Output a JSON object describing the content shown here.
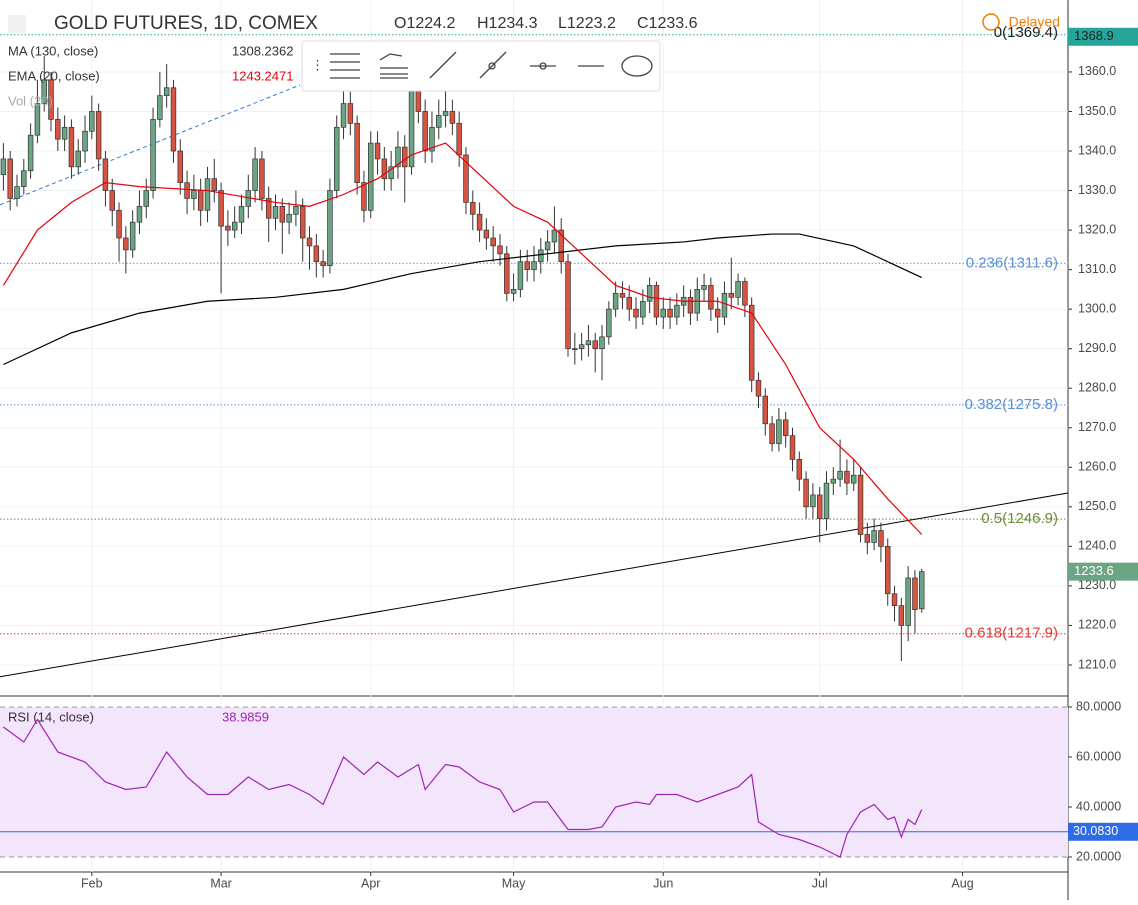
{
  "header": {
    "title": "GOLD FUTURES, 1D, COMEX",
    "ohlc": [
      {
        "label": "O1224.2",
        "value": 1224.2
      },
      {
        "label": "H1234.3",
        "value": 1234.3
      },
      {
        "label": "L1223.2",
        "value": 1223.2
      },
      {
        "label": "C1233.6",
        "value": 1233.6
      }
    ],
    "status": "Delayed"
  },
  "legend": [
    {
      "name": "MA (130, close)",
      "value": 1308.2362,
      "color": "#000000"
    },
    {
      "name": "EMA (20, close)",
      "value": 1243.2471,
      "color": "#e8000b"
    },
    {
      "name": "Vol (20)"
    }
  ],
  "chart_data": {
    "type": "candlestick",
    "xlim": [
      -0.5,
      156.5
    ],
    "xticks": [
      {
        "value": 13,
        "label": "Feb"
      },
      {
        "value": 32,
        "label": "Mar"
      },
      {
        "value": 54,
        "label": "Apr"
      },
      {
        "value": 75,
        "label": "May"
      },
      {
        "value": 97,
        "label": "Jun"
      },
      {
        "value": 120,
        "label": "Jul"
      },
      {
        "value": 141,
        "label": "Aug"
      }
    ],
    "ylim": [
      1202.4,
      1378.2
    ],
    "yticks": [
      {
        "value": 1210,
        "label": "1210.0"
      },
      {
        "value": 1220,
        "label": "1220.0"
      },
      {
        "value": 1230,
        "label": "1230.0"
      },
      {
        "value": 1240,
        "label": "1240.0"
      },
      {
        "value": 1250,
        "label": "1250.0"
      },
      {
        "value": 1260,
        "label": "1260.0"
      },
      {
        "value": 1270,
        "label": "1270.0"
      },
      {
        "value": 1280,
        "label": "1280.0"
      },
      {
        "value": 1290,
        "label": "1290.0"
      },
      {
        "value": 1300,
        "label": "1300.0"
      },
      {
        "value": 1310,
        "label": "1310.0"
      },
      {
        "value": 1320,
        "label": "1320.0"
      },
      {
        "value": 1330,
        "label": "1330.0"
      },
      {
        "value": 1340,
        "label": "1340.0"
      },
      {
        "value": 1350,
        "label": "1350.0"
      },
      {
        "value": 1360,
        "label": "1360.0"
      }
    ],
    "up_color": "#6ba583",
    "down_color": "#d75442",
    "open": [
      1334,
      1338,
      1328,
      1331,
      1335,
      1344,
      1352,
      1358,
      1348,
      1343,
      1346,
      1336,
      1340,
      1345,
      1350,
      1338,
      1330,
      1325,
      1318,
      1315,
      1322,
      1326,
      1330,
      1348,
      1354,
      1356,
      1340,
      1332,
      1328,
      1330,
      1325,
      1333,
      1330,
      1321,
      1320,
      1322,
      1326,
      1330,
      1338,
      1328,
      1323,
      1326,
      1322,
      1324,
      1326,
      1318,
      1316,
      1312,
      1311,
      1330,
      1346,
      1352,
      1347,
      1332,
      1325,
      1342,
      1338,
      1333,
      1336,
      1341,
      1336,
      1357,
      1350,
      1340,
      1346,
      1349,
      1350,
      1347,
      1339,
      1327,
      1324,
      1320,
      1318,
      1316,
      1314,
      1304,
      1305,
      1312,
      1310,
      1312,
      1315,
      1317,
      1320,
      1312,
      1290,
      1290,
      1291,
      1292,
      1290,
      1293,
      1300,
      1304,
      1303,
      1300,
      1298,
      1302,
      1306,
      1298,
      1300,
      1298,
      1301,
      1303,
      1299,
      1305,
      1306,
      1300,
      1298,
      1304,
      1303,
      1307,
      1301,
      1282,
      1278,
      1271,
      1266,
      1272,
      1268,
      1262,
      1257,
      1250,
      1253,
      1247,
      1256,
      1257,
      1259,
      1256,
      1258,
      1243,
      1241,
      1244,
      1240,
      1228,
      1225,
      1220,
      1232,
      1224.2
    ],
    "high": [
      1342,
      1340,
      1334,
      1338,
      1347,
      1358,
      1364,
      1360,
      1351,
      1349,
      1348,
      1343,
      1349,
      1354,
      1352,
      1340,
      1333,
      1327,
      1321,
      1325,
      1330,
      1333,
      1351,
      1360,
      1362,
      1358,
      1343,
      1335,
      1334,
      1333,
      1336,
      1338,
      1332,
      1325,
      1326,
      1329,
      1334,
      1341,
      1340,
      1331,
      1329,
      1328,
      1327,
      1330,
      1328,
      1321,
      1319,
      1315,
      1333,
      1349,
      1356,
      1355,
      1349,
      1335,
      1345,
      1345,
      1341,
      1340,
      1345,
      1344,
      1362,
      1360,
      1353,
      1350,
      1353,
      1358,
      1353,
      1350,
      1341,
      1330,
      1327,
      1323,
      1321,
      1319,
      1316,
      1309,
      1315,
      1315,
      1316,
      1318,
      1320,
      1326,
      1323,
      1314,
      1294,
      1294,
      1296,
      1294,
      1296,
      1302,
      1307,
      1307,
      1306,
      1303,
      1305,
      1308,
      1307,
      1303,
      1303,
      1304,
      1306,
      1305,
      1308,
      1309,
      1308,
      1303,
      1307,
      1313,
      1309,
      1308,
      1303,
      1284,
      1280,
      1273,
      1275,
      1274,
      1270,
      1264,
      1259,
      1256,
      1255,
      1259,
      1260,
      1267,
      1262,
      1262,
      1260,
      1246,
      1247,
      1246,
      1242,
      1230,
      1227,
      1235,
      1234,
      1234.3
    ],
    "low": [
      1330,
      1325,
      1326,
      1329,
      1333,
      1342,
      1350,
      1345,
      1340,
      1340,
      1333,
      1334,
      1337,
      1343,
      1335,
      1326,
      1321,
      1312,
      1309,
      1313,
      1319,
      1323,
      1328,
      1346,
      1351,
      1337,
      1329,
      1324,
      1325,
      1321,
      1322,
      1327,
      1304,
      1316,
      1318,
      1319,
      1323,
      1327,
      1325,
      1317,
      1320,
      1314,
      1319,
      1321,
      1312,
      1310,
      1308,
      1308,
      1309,
      1328,
      1343,
      1344,
      1329,
      1322,
      1323,
      1334,
      1330,
      1330,
      1333,
      1327,
      1334,
      1347,
      1337,
      1337,
      1343,
      1346,
      1344,
      1336,
      1324,
      1320,
      1317,
      1315,
      1312,
      1311,
      1302,
      1302,
      1303,
      1307,
      1307,
      1309,
      1312,
      1314,
      1309,
      1288,
      1286,
      1287,
      1288,
      1284,
      1282,
      1291,
      1298,
      1300,
      1297,
      1295,
      1296,
      1299,
      1296,
      1295,
      1295,
      1296,
      1298,
      1296,
      1297,
      1302,
      1297,
      1294,
      1296,
      1300,
      1301,
      1298,
      1279,
      1275,
      1268,
      1264,
      1264,
      1265,
      1259,
      1254,
      1247,
      1247,
      1241,
      1244,
      1253,
      1255,
      1253,
      1254,
      1241,
      1238,
      1239,
      1236,
      1225,
      1221,
      1211,
      1216,
      1218,
      1223.2
    ],
    "close": [
      1338,
      1328,
      1331,
      1335,
      1344,
      1352,
      1358,
      1348,
      1343,
      1346,
      1336,
      1340,
      1345,
      1350,
      1338,
      1330,
      1325,
      1318,
      1315,
      1322,
      1326,
      1330,
      1348,
      1354,
      1356,
      1340,
      1332,
      1328,
      1330,
      1325,
      1333,
      1330,
      1321,
      1320,
      1322,
      1326,
      1330,
      1338,
      1328,
      1323,
      1326,
      1322,
      1324,
      1326,
      1318,
      1316,
      1312,
      1311,
      1330,
      1346,
      1352,
      1347,
      1332,
      1325,
      1342,
      1338,
      1333,
      1336,
      1341,
      1336,
      1357,
      1350,
      1340,
      1346,
      1349,
      1350,
      1347,
      1339,
      1327,
      1324,
      1320,
      1318,
      1316,
      1314,
      1304,
      1305,
      1312,
      1310,
      1312,
      1315,
      1317,
      1320,
      1312,
      1290,
      1290,
      1291,
      1292,
      1290,
      1293,
      1300,
      1304,
      1303,
      1300,
      1298,
      1302,
      1306,
      1298,
      1300,
      1298,
      1301,
      1303,
      1299,
      1305,
      1306,
      1300,
      1298,
      1304,
      1303,
      1307,
      1301,
      1282,
      1278,
      1271,
      1266,
      1272,
      1268,
      1262,
      1257,
      1250,
      1253,
      1247,
      1256,
      1257,
      1259,
      1256,
      1258,
      1243,
      1241,
      1244,
      1240,
      1228,
      1225,
      1220,
      1232,
      1224,
      1233.6
    ],
    "series": [
      {
        "name": "MA (130, close)",
        "color": "#000000",
        "x": [
          0,
          10,
          20,
          30,
          40,
          50,
          60,
          70,
          80,
          90,
          100,
          105,
          113,
          117,
          125,
          135
        ],
        "values": [
          1286,
          1294,
          1299,
          1302,
          1303,
          1305,
          1309,
          1312,
          1314,
          1316,
          1317,
          1318,
          1319,
          1319,
          1316,
          1308
        ]
      },
      {
        "name": "EMA (20, close)",
        "color": "#e8000b",
        "x": [
          0,
          5,
          10,
          15,
          20,
          30,
          40,
          45,
          50,
          55,
          60,
          65,
          70,
          75,
          80,
          85,
          90,
          95,
          100,
          105,
          110,
          115,
          120,
          125,
          130,
          135
        ],
        "values": [
          1306,
          1320,
          1327,
          1332,
          1331,
          1330,
          1327,
          1326,
          1329,
          1333,
          1339,
          1342,
          1334,
          1326,
          1322,
          1314,
          1306,
          1303,
          1302,
          1302,
          1299,
          1286,
          1270,
          1262,
          1252,
          1243
        ]
      }
    ],
    "trendlines": [
      {
        "color": "#000000",
        "x": [
          -0.5,
          156.5
        ],
        "values": [
          1207,
          1253.5
        ]
      },
      {
        "color": "#2e7bd6",
        "x": [
          -0.5,
          43.6
        ],
        "values": [
          1326.4,
          1356.7
        ]
      }
    ],
    "fib_levels": [
      {
        "label": "0(1369.4)",
        "value": 1369.4,
        "color": "#26a69a"
      },
      {
        "label": "0.236(1311.6)",
        "value": 1311.6,
        "color": "#5b8fd9"
      },
      {
        "label": "0.382(1275.8)",
        "value": 1275.8,
        "color": "#5b8fd9"
      },
      {
        "label": "0.5(1246.9)",
        "value": 1246.9,
        "color": "#6b8e3a"
      },
      {
        "label": "0.618(1217.9)",
        "value": 1217.9,
        "color": "#e53935"
      }
    ],
    "badges": [
      {
        "value": 1368.9,
        "color": "#26a69a"
      },
      {
        "value": 1233.6,
        "color": "#6ba583"
      }
    ]
  },
  "rsi": {
    "name": "RSI (14, close)",
    "value": 38.9859,
    "color": "#9c27b0",
    "ylim": [
      14,
      84
    ],
    "yticks": [
      {
        "value": 20,
        "label": "20.0000"
      },
      {
        "value": 40,
        "label": "40.0000"
      },
      {
        "value": 60,
        "label": "60.0000"
      },
      {
        "value": 80,
        "label": "80.0000"
      }
    ],
    "bands": [
      20,
      80
    ],
    "level": {
      "value": 30.083,
      "label": "30.0830",
      "color": "#2e6be6"
    },
    "x": [
      0,
      3,
      5,
      8,
      12,
      15,
      18,
      21,
      24,
      27,
      30,
      33,
      36,
      39,
      42,
      45,
      47,
      50,
      53,
      55,
      58,
      61,
      62,
      65,
      67,
      70,
      73,
      75,
      78,
      80,
      83,
      86,
      88,
      90,
      93,
      95,
      96,
      99,
      102,
      105,
      108,
      110,
      111,
      114,
      117,
      120,
      123,
      124,
      126,
      128,
      130,
      131,
      132,
      133,
      134,
      135
    ],
    "values": [
      72,
      66,
      75,
      62,
      58,
      50,
      47,
      48,
      62,
      52,
      45,
      45,
      52,
      47,
      49,
      45,
      41,
      60,
      53,
      58,
      52,
      57,
      47,
      57,
      56,
      50,
      47,
      38,
      42,
      42,
      31,
      31,
      32,
      40,
      42,
      41,
      45,
      45,
      42,
      45,
      48,
      53,
      34,
      29,
      27,
      24,
      20,
      29,
      38,
      41,
      35,
      36,
      28,
      35,
      33,
      39
    ]
  }
}
